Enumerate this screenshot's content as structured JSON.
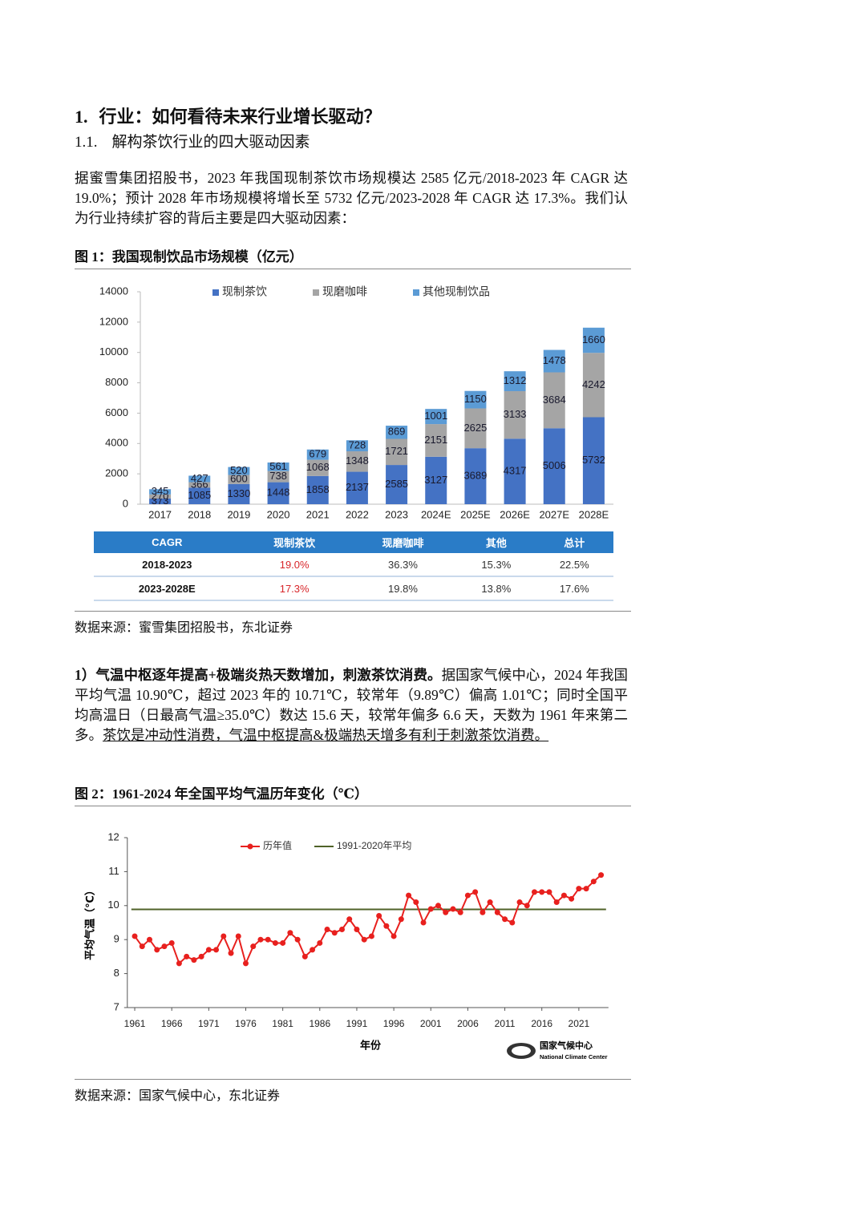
{
  "heading": {
    "number": "1.",
    "title": "行业：如何看待未来行业增长驱动？"
  },
  "subheading": {
    "number": "1.1.",
    "title": "解构茶饮行业的四大驱动因素"
  },
  "paragraph_1": "据蜜雪集团招股书，2023 年我国现制茶饮市场规模达 2585 亿元/2018-2023 年 CAGR 达 19.0%；预计 2028 年市场规模将增长至 5732 亿元/2023-2028 年 CAGR 达 17.3%。我们认为行业持续扩容的背后主要是四大驱动因素：",
  "figure_1": {
    "caption": "图 1：我国现制饮品市场规模（亿元）",
    "source": "数据来源：蜜雪集团招股书，东北证券"
  },
  "table": {
    "header": [
      "CAGR",
      "现制茶饮",
      "现磨咖啡",
      "其他",
      "总计"
    ],
    "rows": [
      [
        "2018-2023",
        "19.0%",
        "36.3%",
        "15.3%",
        "22.5%"
      ],
      [
        "2023-2028E",
        "17.3%",
        "19.8%",
        "13.8%",
        "17.6%"
      ]
    ]
  },
  "paragraph_2": {
    "lead": "1）气温中枢逐年提高+极端炎热天数增加，刺激茶饮消费。",
    "text": "据国家气候中心，2024 年我国平均气温 10.90℃，超过 2023 年的 10.71℃，较常年（9.89℃）偏高 1.01℃；同时全国平均高温日（日最高气温≥35.0℃）数达 15.6 天，较常年偏多 6.6 天，天数为 1961 年来第二多。",
    "underlined": "茶饮是冲动性消费，气温中枢提高&极端热天增多有利于刺激茶饮消费。"
  },
  "figure_2": {
    "caption": "图 2：1961-2024 年全国平均气温历年变化（℃）",
    "source": "数据来源：国家气候中心，东北证券"
  },
  "chart_data": [
    {
      "type": "bar",
      "stacked": true,
      "categories": [
        "2017",
        "2018",
        "2019",
        "2020",
        "2021",
        "2022",
        "2023",
        "2024E",
        "2025E",
        "2026E",
        "2027E",
        "2028E"
      ],
      "series": [
        {
          "name": "现制茶饮",
          "color": "#4472c4",
          "values": [
            373,
            1085,
            1330,
            1448,
            1858,
            2137,
            2585,
            3127,
            3689,
            4317,
            5006,
            5732
          ]
        },
        {
          "name": "现磨咖啡",
          "color": "#a5a5a5",
          "values": [
            270,
            366,
            600,
            738,
            1068,
            1348,
            1721,
            2151,
            2625,
            3133,
            3684,
            4242
          ]
        },
        {
          "name": "其他现制饮品",
          "color": "#5b9bd5",
          "values": [
            345,
            427,
            520,
            561,
            679,
            728,
            869,
            1001,
            1150,
            1312,
            1478,
            1660
          ]
        }
      ],
      "ylim": [
        0,
        14000
      ],
      "yticks": [
        0,
        2000,
        4000,
        6000,
        8000,
        10000,
        12000,
        14000
      ],
      "legend": "top",
      "grid": false
    },
    {
      "type": "line",
      "x_label": "年份",
      "y_label": "平均气温（℃）",
      "x": [
        1961,
        1962,
        1963,
        1964,
        1965,
        1966,
        1967,
        1968,
        1969,
        1970,
        1971,
        1972,
        1973,
        1974,
        1975,
        1976,
        1977,
        1978,
        1979,
        1980,
        1981,
        1982,
        1983,
        1984,
        1985,
        1986,
        1987,
        1988,
        1989,
        1990,
        1991,
        1992,
        1993,
        1994,
        1995,
        1996,
        1997,
        1998,
        1999,
        2000,
        2001,
        2002,
        2003,
        2004,
        2005,
        2006,
        2007,
        2008,
        2009,
        2010,
        2011,
        2012,
        2013,
        2014,
        2015,
        2016,
        2017,
        2018,
        2019,
        2020,
        2021,
        2022,
        2023,
        2024
      ],
      "series": [
        {
          "name": "历年值",
          "color": "#e8201e",
          "values": [
            9.1,
            8.8,
            9.0,
            8.7,
            8.8,
            8.9,
            8.3,
            8.5,
            8.4,
            8.5,
            8.7,
            8.7,
            9.1,
            8.6,
            9.1,
            8.3,
            8.8,
            9.0,
            9.0,
            8.9,
            8.9,
            9.2,
            9.0,
            8.5,
            8.7,
            8.9,
            9.3,
            9.2,
            9.3,
            9.6,
            9.3,
            9.0,
            9.1,
            9.7,
            9.4,
            9.1,
            9.6,
            10.3,
            10.1,
            9.5,
            9.9,
            10.0,
            9.8,
            9.9,
            9.8,
            10.3,
            10.4,
            9.8,
            10.1,
            9.8,
            9.6,
            9.5,
            10.1,
            10.0,
            10.4,
            10.4,
            10.4,
            10.1,
            10.3,
            10.2,
            10.5,
            10.5,
            10.71,
            10.9
          ]
        }
      ],
      "reference_lines": [
        {
          "name": "1991-2020年平均",
          "color": "#4f6228",
          "value": 9.89
        }
      ],
      "xlim": [
        1960,
        2025
      ],
      "xticks": [
        1961,
        1966,
        1971,
        1976,
        1981,
        1986,
        1991,
        1996,
        2001,
        2006,
        2011,
        2016,
        2021
      ],
      "ylim": [
        7,
        12
      ],
      "yticks": [
        7,
        8,
        9,
        10,
        11,
        12
      ],
      "legend": "top",
      "grid": false,
      "logo": {
        "name": "国家气候中心",
        "name_en": "National Climate Center"
      }
    }
  ]
}
